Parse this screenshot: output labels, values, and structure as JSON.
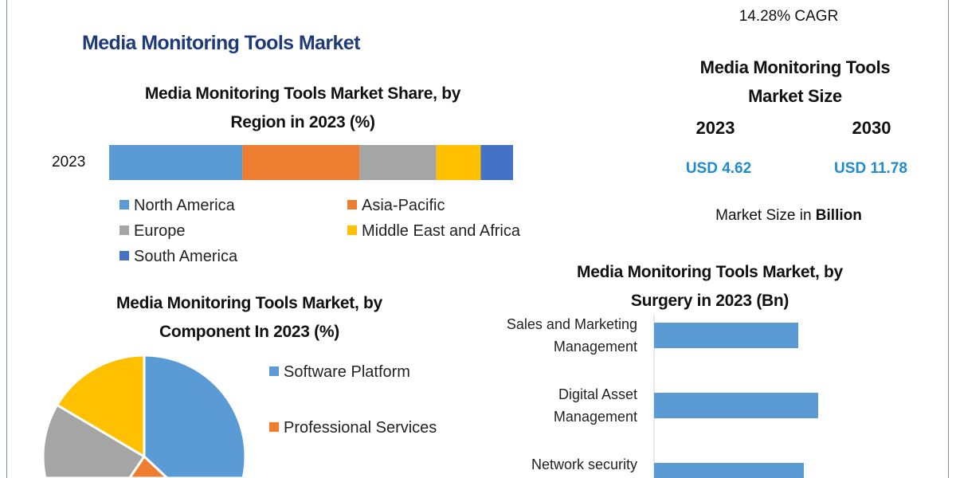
{
  "title": "Media Monitoring Tools Market",
  "summary": {
    "cagr": "14.28% CAGR",
    "size_title_line1": "Media Monitoring Tools",
    "size_title_line2": "Market Size",
    "year_start": "2023",
    "year_end": "2030",
    "value_start": "USD 4.62",
    "value_end": "USD 11.78",
    "unit_prefix": "Market Size in ",
    "unit_bold": "Billion"
  },
  "colors": {
    "title": "#1f3a7a",
    "usd": "#1f8bd0",
    "blue": "#5b9bd5",
    "orange": "#ed7d31",
    "gray": "#a5a5a5",
    "yellow": "#ffc000",
    "darkblue": "#4472c4"
  },
  "chart_data": [
    {
      "type": "bar",
      "orientation": "horizontal-stacked",
      "title_line1": "Media Monitoring Tools Market Share, by",
      "title_line2": "Region in 2023 (%)",
      "categories": [
        "2023"
      ],
      "series": [
        {
          "name": "North America",
          "values": [
            33
          ],
          "color": "#5b9bd5"
        },
        {
          "name": "Asia-Pacific",
          "values": [
            29
          ],
          "color": "#ed7d31"
        },
        {
          "name": "Europe",
          "values": [
            19
          ],
          "color": "#a5a5a5"
        },
        {
          "name": "Middle East and Africa",
          "values": [
            11
          ],
          "color": "#ffc000"
        },
        {
          "name": "South America",
          "values": [
            8
          ],
          "color": "#4472c4"
        }
      ],
      "legend": "bottom"
    },
    {
      "type": "pie",
      "title_line1": "Media Monitoring Tools Market, by",
      "title_line2": "Component In 2023 (%)",
      "slices": [
        {
          "name": "Software Platform",
          "value": 37,
          "color": "#5b9bd5"
        },
        {
          "name": "Professional Services",
          "value": 22.5,
          "color": "#ed7d31"
        },
        {
          "name": "",
          "value": 24,
          "color": "#a5a5a5"
        },
        {
          "name": "",
          "value": 16.5,
          "color": "#ffc000"
        }
      ],
      "legend": "right"
    },
    {
      "type": "bar",
      "orientation": "horizontal",
      "title_line1": "Media Monitoring Tools Market, by",
      "title_line2": "Surgery in 2023 (Bn)",
      "categories": [
        [
          "Sales and Marketing",
          "Management"
        ],
        [
          "Digital Asset",
          "Management"
        ],
        [
          "Network security",
          ""
        ]
      ],
      "values": [
        1.81,
        2.06,
        1.88
      ],
      "xlim": [
        0,
        3.7
      ],
      "color": "#5b9bd5"
    }
  ]
}
